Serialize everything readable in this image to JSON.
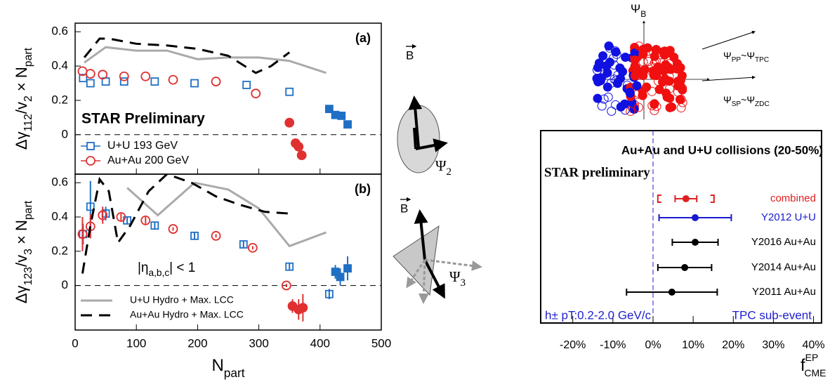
{
  "chart_data": [
    {
      "type": "scatter",
      "ylabel_parts": [
        "Δγ",
        "112",
        "/v",
        "2",
        " × N",
        "part"
      ],
      "xlim": [
        0,
        500
      ],
      "xticks": [
        0,
        100,
        200,
        300,
        400,
        500
      ],
      "ylim": [
        -0.23,
        0.65
      ],
      "yticks": [
        0,
        0.2,
        0.4,
        0.6
      ],
      "annotations": [
        "(a)",
        "STAR Preliminary"
      ],
      "legend": "lower left",
      "series": [
        {
          "name": "U+U 193 GeV",
          "color": "#1f6fc5",
          "marker": "square",
          "x": [
            13,
            25,
            50,
            80,
            130,
            195,
            280,
            350,
            415,
            425,
            435,
            445
          ],
          "values": [
            0.33,
            0.3,
            0.31,
            0.31,
            0.31,
            0.3,
            0.29,
            0.25,
            0.15,
            0.115,
            0.11,
            0.06
          ],
          "filled": [
            false,
            false,
            false,
            false,
            false,
            false,
            false,
            false,
            true,
            true,
            true,
            true
          ]
        },
        {
          "name": "Au+Au 200 GeV",
          "color": "#e03030",
          "marker": "circle",
          "x": [
            12,
            25,
            45,
            80,
            115,
            160,
            230,
            295,
            350,
            360,
            365,
            370
          ],
          "values": [
            0.37,
            0.355,
            0.35,
            0.34,
            0.34,
            0.32,
            0.31,
            0.24,
            0.07,
            -0.05,
            -0.07,
            -0.12
          ],
          "filled": [
            false,
            false,
            false,
            false,
            false,
            false,
            false,
            false,
            true,
            true,
            true,
            true
          ]
        },
        {
          "color": "#aaaaaa",
          "marker": "line",
          "x": [
            15,
            50,
            100,
            150,
            200,
            250,
            300,
            350,
            410
          ],
          "values": [
            0.42,
            0.51,
            0.49,
            0.49,
            0.44,
            0.45,
            0.45,
            0.43,
            0.36
          ]
        },
        {
          "color": "#000000",
          "marker": "line",
          "dash": true,
          "x": [
            15,
            40,
            55,
            100,
            150,
            200,
            250,
            295,
            320,
            350
          ],
          "values": [
            0.45,
            0.56,
            0.56,
            0.53,
            0.52,
            0.5,
            0.46,
            0.36,
            0.4,
            0.48
          ]
        }
      ]
    },
    {
      "type": "scatter",
      "ylabel_parts": [
        "Δγ",
        "123",
        "/v",
        "3",
        " × N",
        "part"
      ],
      "xlabel_parts": [
        "N",
        "part"
      ],
      "xlim": [
        0,
        500
      ],
      "xticks": [
        0,
        100,
        200,
        300,
        400,
        500
      ],
      "ylim": [
        -0.26,
        0.65
      ],
      "yticks": [
        0,
        0.2,
        0.4,
        0.6
      ],
      "annotations": [
        "(b)"
      ],
      "eta_parts": [
        "|η",
        "a,b,c",
        "| < 1"
      ],
      "legend": "lower left",
      "series": [
        {
          "color": "#1f6fc5",
          "marker": "square",
          "x": [
            13,
            25,
            50,
            85,
            130,
            195,
            275,
            350,
            415,
            425,
            433,
            445
          ],
          "values": [
            0.3,
            0.46,
            0.42,
            0.38,
            0.35,
            0.29,
            0.24,
            0.11,
            -0.05,
            0.08,
            0.05,
            0.1
          ],
          "errors": [
            0.06,
            0.15,
            0.04,
            0.02,
            0.02,
            0.02,
            0.02,
            0.02,
            0.03,
            0.04,
            0.05,
            0.07
          ],
          "filled": [
            false,
            false,
            false,
            false,
            false,
            false,
            false,
            false,
            false,
            true,
            true,
            true
          ]
        },
        {
          "color": "#e03030",
          "marker": "circle",
          "x": [
            12,
            25,
            45,
            75,
            115,
            160,
            230,
            290,
            345,
            355,
            365,
            372
          ],
          "values": [
            0.3,
            0.345,
            0.41,
            0.4,
            0.38,
            0.33,
            0.29,
            0.22,
            0,
            -0.12,
            -0.14,
            -0.13
          ],
          "errors": [
            0.1,
            0.07,
            0.05,
            0.02,
            0.02,
            0.01,
            0.01,
            0.01,
            0.01,
            0.04,
            0.06,
            0.08
          ],
          "filled": [
            false,
            false,
            false,
            false,
            false,
            false,
            false,
            false,
            false,
            true,
            true,
            true
          ]
        },
        {
          "name": "U+U Hydro + Max. LCC",
          "color": "#aaaaaa",
          "marker": "line",
          "x": [
            85,
            135,
            195,
            250,
            300,
            350,
            410
          ],
          "values": [
            0.57,
            0.41,
            0.6,
            0.56,
            0.45,
            0.23,
            0.31
          ]
        },
        {
          "name": "Au+Au Hydro + Max. LCC",
          "color": "#000000",
          "marker": "line",
          "dash": true,
          "x": [
            12,
            25,
            40,
            55,
            70,
            90,
            120,
            150,
            190,
            230,
            270,
            310,
            350
          ],
          "values": [
            0.07,
            0.35,
            0.62,
            0.55,
            0.25,
            0.35,
            0.55,
            0.65,
            0.6,
            0.52,
            0.47,
            0.43,
            0.42
          ]
        }
      ]
    },
    {
      "type": "errorbar",
      "title": "Au+Au and U+U collisions (20-50%)",
      "subtitle": "STAR preliminary",
      "categories": [
        "combined",
        "Y2012 U+U",
        "Y2016 Au+Au",
        "Y2014 Au+Au",
        "Y2011 Au+Au"
      ],
      "values": [
        8.2,
        10.5,
        10.5,
        7.9,
        4.7
      ],
      "errors": [
        2.7,
        9,
        5.7,
        6.7,
        11.3
      ],
      "sys_errors": [
        7,
        null,
        null,
        null,
        null
      ],
      "colors": [
        "#e02020",
        "#1a1ad0",
        "#000000",
        "#000000",
        "#000000"
      ],
      "xlim": [
        -28,
        42
      ],
      "xticks": [
        {
          "value": -20,
          "label": "-20%"
        },
        {
          "value": -10,
          "label": "-10%"
        },
        {
          "value": 0,
          "label": "0%"
        },
        {
          "value": 10,
          "label": "10%"
        },
        {
          "value": 20,
          "label": "20%"
        },
        {
          "value": 30,
          "label": "30%"
        },
        {
          "value": 40,
          "label": "40%"
        }
      ],
      "xlabel": "f",
      "xlabel_sup": "EP",
      "xlabel_sub": "CME",
      "notes": [
        "h± pT:0.2-2.0 GeV/c",
        "TPC sub-event"
      ]
    }
  ],
  "diagrams": {
    "b_field": "B",
    "psi2_parts": [
      "Ψ",
      "2"
    ],
    "b_field_2": "B",
    "psi3_parts": [
      "Ψ",
      "3"
    ],
    "psib_parts": [
      "Ψ",
      "B"
    ],
    "pp_parts": [
      "Ψ",
      "PP",
      "~Ψ",
      "TPC"
    ],
    "sp_parts": [
      "Ψ",
      "SP",
      "~Ψ",
      "ZDC"
    ]
  }
}
